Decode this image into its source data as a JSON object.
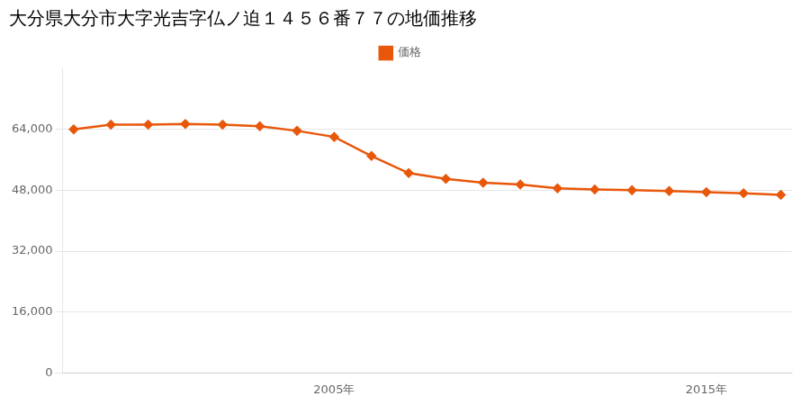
{
  "chart_data": {
    "type": "line",
    "title": "大分県大分市大字光吉字仏ノ迫１４５６番７７の地価推移",
    "x": [
      1998,
      1999,
      2000,
      2001,
      2002,
      2003,
      2004,
      2005,
      2006,
      2007,
      2008,
      2009,
      2010,
      2011,
      2012,
      2013,
      2014,
      2015,
      2016,
      2017
    ],
    "series": [
      {
        "name": "価格",
        "color": "#E8570A",
        "marker": "diamond",
        "values": [
          64000,
          65200,
          65200,
          65400,
          65200,
          64800,
          63600,
          62000,
          57000,
          52500,
          51000,
          50000,
          49500,
          48500,
          48200,
          48000,
          47800,
          47500,
          47200,
          46800
        ]
      }
    ],
    "xlim": [
      1997.7,
      2017.3
    ],
    "xticks": [
      {
        "value": 2005,
        "label": "2005年"
      },
      {
        "value": 2015,
        "label": "2015年"
      }
    ],
    "ylim": [
      0,
      80000
    ],
    "yticks": [
      0,
      {
        "value": 16000,
        "label": "16,000"
      },
      {
        "value": 32000,
        "label": "32,000"
      },
      {
        "value": 48000,
        "label": "48,000"
      },
      {
        "value": 64000,
        "label": "64,000"
      }
    ],
    "grid": "y",
    "legend": "top"
  }
}
